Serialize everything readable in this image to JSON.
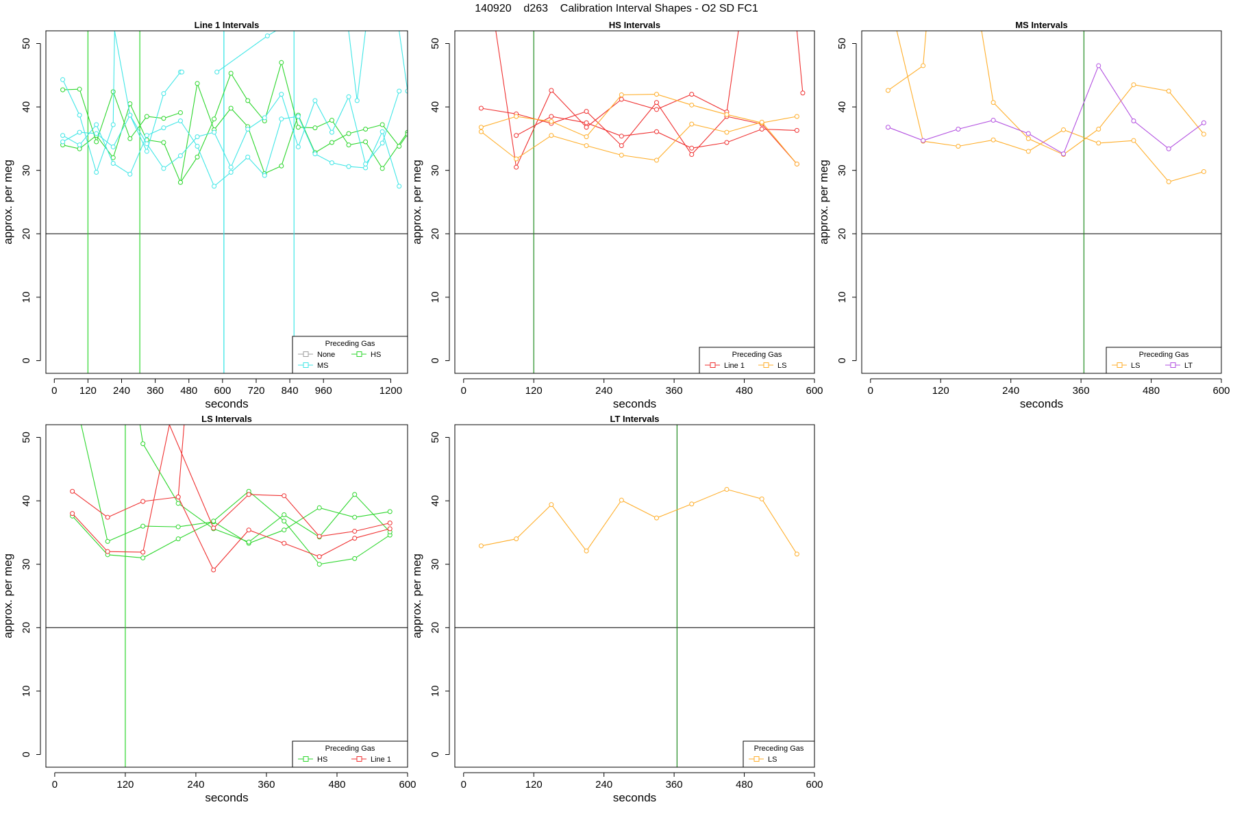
{
  "title": "140920    d263    Calibration Interval Shapes - O2 SD FC1",
  "y_label": "approx. per meg",
  "x_label": "seconds",
  "legend_title": "Preceding Gas",
  "colors": {
    "None": "#9e9e9e",
    "HS": "#2bd62b",
    "MS": "#3fe6e6",
    "Line 1": "#ef3030",
    "LS": "#ffae2a",
    "LT": "#b24fe0",
    "ref_line": "#000000",
    "vline": "#1e8a1e",
    "frame": "#000000"
  },
  "chart_data": [
    {
      "id": "line1",
      "type": "line",
      "title": "Line 1 Intervals",
      "xlabel": "seconds",
      "ylabel": "approx. per meg",
      "xlim": [
        -30,
        1260
      ],
      "ylim": [
        -2,
        52
      ],
      "xticks": [
        0,
        120,
        240,
        360,
        480,
        600,
        720,
        840,
        960,
        1200
      ],
      "yticks": [
        0,
        10,
        20,
        30,
        40,
        50
      ],
      "hline": 20,
      "vlines": [
        120,
        305
      ],
      "vlines_color": "HS",
      "extra_vlines": [
        {
          "x": 605,
          "color": "MS"
        },
        {
          "x": 605,
          "color": "MS"
        },
        {
          "x": 855,
          "color": "MS"
        }
      ],
      "legend": {
        "position": "bottom-right",
        "ncol": 2,
        "entries": [
          "None",
          "HS",
          "MS"
        ]
      },
      "series": [
        {
          "name": "HS",
          "color": "HS",
          "x": [
            30,
            90,
            150,
            210,
            270,
            330,
            390,
            450
          ],
          "y": [
            42.7,
            42.8,
            34.5,
            42.4,
            35.0,
            38.5,
            38.2,
            39.1
          ]
        },
        {
          "name": "HS",
          "color": "HS",
          "x": [
            30,
            90,
            150,
            210,
            270,
            330,
            390,
            450,
            510,
            570,
            630,
            690,
            750,
            810,
            870,
            930,
            990,
            1050,
            1110,
            1170,
            1260
          ],
          "y": [
            34.0,
            33.4,
            35.5,
            32.0,
            40.5,
            34.8,
            34.4,
            28.1,
            32.1,
            38.1,
            45.3,
            41.0,
            37.8,
            47.0,
            36.8,
            36.7,
            37.9,
            34.0,
            34.5,
            30.3,
            36.0
          ]
        },
        {
          "name": "HS",
          "color": "HS",
          "x": [
            450,
            510,
            570,
            630,
            690,
            750,
            810,
            870,
            930,
            990,
            1050,
            1110,
            1170,
            1230,
            1260
          ],
          "y": [
            28.1,
            43.7,
            36.4,
            39.8,
            36.9,
            29.5,
            30.7,
            38.7,
            32.8,
            34.4,
            35.8,
            36.5,
            37.2,
            33.8,
            35.7
          ]
        },
        {
          "name": "MS",
          "color": "MS",
          "x": [
            30,
            90,
            150,
            210,
            215,
            270,
            330,
            390,
            450,
            455
          ],
          "y": [
            44.3,
            38.7,
            29.7,
            37.2,
            52,
            38.7,
            33.0,
            42.1,
            45.5,
            45.5
          ]
        },
        {
          "name": "MS",
          "color": "MS",
          "x": [
            30,
            90,
            150,
            210,
            270,
            330,
            390,
            450,
            510,
            570,
            630,
            690,
            750,
            810,
            870,
            930,
            990,
            1050,
            1110,
            1170,
            1230
          ],
          "y": [
            35.5,
            34.0,
            37.2,
            31.1,
            29.4,
            35.5,
            36.7,
            37.8,
            33.8,
            27.5,
            29.7,
            32.1,
            29.2,
            38.1,
            38.5,
            32.6,
            31.2,
            30.6,
            30.4,
            36.1,
            27.5
          ]
        },
        {
          "name": "MS",
          "color": "MS",
          "x": [
            30,
            90,
            150,
            210,
            270,
            330,
            390,
            450,
            510,
            570,
            630,
            690,
            750,
            810,
            870,
            930,
            990,
            1050,
            1110,
            1170,
            1230
          ],
          "y": [
            34.5,
            36.0,
            35.8,
            33.7,
            38.7,
            34.2,
            30.3,
            32.3,
            35.3,
            36.0,
            30.5,
            36.5,
            38.3,
            42.0,
            33.7,
            41.0,
            36.0,
            41.6,
            31.0,
            34.3,
            42.5
          ]
        },
        {
          "name": "MS",
          "color": "MS",
          "x": [
            580,
            760,
            790,
            1050,
            1080,
            1110,
            1170,
            1230,
            1260
          ],
          "y": [
            45.5,
            51.2,
            52,
            52,
            41.0,
            52,
            52,
            52,
            42.5
          ]
        }
      ]
    },
    {
      "id": "hs",
      "type": "line",
      "title": "HS Intervals",
      "xlabel": "seconds",
      "ylabel": "approx. per meg",
      "xlim": [
        -15,
        600
      ],
      "ylim": [
        -2,
        52
      ],
      "xticks": [
        0,
        120,
        240,
        360,
        480,
        600
      ],
      "yticks": [
        0,
        10,
        20,
        30,
        40,
        50
      ],
      "hline": 20,
      "vlines": [
        120
      ],
      "vlines_color": "vline",
      "legend": {
        "position": "bottom-right",
        "ncol": 2,
        "entries": [
          "Line 1",
          "LS"
        ]
      },
      "series": [
        {
          "name": "Line 1",
          "color": "Line 1",
          "x": [
            30,
            55,
            90,
            150,
            210,
            270,
            330,
            390,
            450,
            470,
            510,
            570,
            580
          ],
          "y": [
            52,
            52,
            30.5,
            42.6,
            36.8,
            41.2,
            39.6,
            42.0,
            39.2,
            52,
            52,
            52,
            42.2
          ]
        },
        {
          "name": "Line 1",
          "color": "Line 1",
          "x": [
            30,
            90,
            150,
            210,
            270,
            330,
            390,
            450,
            510,
            570
          ],
          "y": [
            39.8,
            38.9,
            37.4,
            39.3,
            33.9,
            40.7,
            32.5,
            38.5,
            37.3,
            31.0
          ]
        },
        {
          "name": "Line 1",
          "color": "Line 1",
          "x": [
            90,
            150,
            210,
            270,
            330,
            390,
            450,
            510,
            570
          ],
          "y": [
            35.5,
            38.5,
            37.5,
            35.4,
            36.1,
            33.5,
            34.4,
            36.5,
            36.3
          ]
        },
        {
          "name": "LS",
          "color": "LS",
          "x": [
            30,
            90,
            150,
            210,
            270,
            330,
            390,
            450,
            510,
            570
          ],
          "y": [
            36.8,
            38.5,
            37.7,
            35.3,
            41.9,
            42.0,
            40.3,
            38.8,
            37.5,
            38.5
          ]
        },
        {
          "name": "LS",
          "color": "LS",
          "x": [
            30,
            90,
            150,
            210,
            270,
            330,
            390,
            450,
            510,
            570
          ],
          "y": [
            36.1,
            31.8,
            35.5,
            33.9,
            32.4,
            31.6,
            37.3,
            36.0,
            37.6,
            31.0
          ]
        }
      ]
    },
    {
      "id": "ms",
      "type": "line",
      "title": "MS Intervals",
      "xlabel": "seconds",
      "ylabel": "approx. per meg",
      "xlim": [
        -15,
        600
      ],
      "ylim": [
        -2,
        52
      ],
      "xticks": [
        0,
        120,
        240,
        360,
        480,
        600
      ],
      "yticks": [
        0,
        10,
        20,
        30,
        40,
        50
      ],
      "hline": 20,
      "vlines": [
        365
      ],
      "vlines_color": "vline",
      "legend": {
        "position": "bottom-right",
        "ncol": 2,
        "entries": [
          "LS",
          "LT"
        ]
      },
      "series": [
        {
          "name": "LS",
          "color": "LS",
          "x": [
            30,
            90,
            95
          ],
          "y": [
            42.6,
            46.5,
            52
          ]
        },
        {
          "name": "LS",
          "color": "LS",
          "x": [
            45,
            90,
            150,
            210,
            270,
            330,
            390,
            450,
            510,
            570
          ],
          "y": [
            52,
            34.6,
            33.8,
            34.8,
            33.0,
            36.4,
            34.3,
            34.7,
            28.2,
            29.8
          ]
        },
        {
          "name": "LS",
          "color": "LS",
          "x": [
            190,
            210,
            270,
            330,
            390,
            450,
            510,
            570
          ],
          "y": [
            52,
            40.7,
            35.0,
            32.5,
            36.5,
            43.5,
            42.5,
            35.7
          ]
        },
        {
          "name": "LT",
          "color": "LT",
          "x": [
            30,
            90,
            150,
            210,
            270,
            330,
            390,
            450,
            510,
            570
          ],
          "y": [
            36.8,
            34.7,
            36.5,
            37.9,
            35.8,
            32.6,
            46.5,
            37.8,
            33.4,
            37.5
          ]
        }
      ]
    },
    {
      "id": "ls",
      "type": "line",
      "title": "LS Intervals",
      "xlabel": "seconds",
      "ylabel": "approx. per meg",
      "xlim": [
        -15,
        600
      ],
      "ylim": [
        -2,
        52
      ],
      "xticks": [
        0,
        120,
        240,
        360,
        480,
        600
      ],
      "yticks": [
        0,
        10,
        20,
        30,
        40,
        50
      ],
      "hline": 20,
      "vlines": [
        120
      ],
      "vlines_color": "HS",
      "legend": {
        "position": "bottom-right",
        "ncol": 2,
        "entries": [
          "HS",
          "Line 1"
        ]
      },
      "series": [
        {
          "name": "HS",
          "color": "HS",
          "x": [
            45,
            90,
            150,
            210,
            270,
            330,
            390,
            450,
            510,
            570
          ],
          "y": [
            52,
            33.6,
            36.0,
            35.9,
            36.7,
            33.3,
            35.4,
            38.9,
            37.4,
            38.3
          ]
        },
        {
          "name": "HS",
          "color": "HS",
          "x": [
            30,
            90,
            150,
            210,
            270,
            330,
            390,
            450,
            510,
            570
          ],
          "y": [
            37.6,
            31.5,
            31.0,
            34.0,
            36.8,
            41.5,
            36.8,
            30.0,
            30.9,
            34.6
          ]
        },
        {
          "name": "HS",
          "color": "HS",
          "x": [
            145,
            150,
            210,
            270,
            330,
            390,
            450,
            510,
            570
          ],
          "y": [
            52,
            49.0,
            39.6,
            35.6,
            33.5,
            37.8,
            34.3,
            41.0,
            35.1
          ]
        },
        {
          "name": "Line 1",
          "color": "Line 1",
          "x": [
            30,
            90,
            150,
            210,
            270,
            330,
            390,
            450,
            510,
            570
          ],
          "y": [
            41.5,
            37.4,
            39.9,
            40.6,
            29.1,
            35.4,
            33.3,
            31.2,
            34.1,
            35.6
          ]
        },
        {
          "name": "Line 1",
          "color": "Line 1",
          "x": [
            30,
            90,
            150,
            195,
            270,
            330,
            390,
            450,
            510,
            570
          ],
          "y": [
            38.0,
            32.0,
            31.9,
            52,
            35.7,
            41.0,
            40.8,
            34.4,
            35.2,
            36.5
          ]
        },
        {
          "name": "Line 1",
          "color": "Line 1",
          "x": [
            210,
            220
          ],
          "y": [
            40.6,
            52
          ]
        }
      ]
    },
    {
      "id": "lt",
      "type": "line",
      "title": "LT Intervals",
      "xlabel": "seconds",
      "ylabel": "approx. per meg",
      "xlim": [
        -15,
        600
      ],
      "ylim": [
        -2,
        52
      ],
      "xticks": [
        0,
        120,
        240,
        360,
        480,
        600
      ],
      "yticks": [
        0,
        10,
        20,
        30,
        40,
        50
      ],
      "hline": 20,
      "vlines": [
        365
      ],
      "vlines_color": "vline",
      "legend": {
        "position": "bottom-right",
        "ncol": 1,
        "entries": [
          "LS"
        ]
      },
      "series": [
        {
          "name": "LS",
          "color": "LS",
          "x": [
            30,
            90,
            150,
            210,
            270,
            330,
            390,
            450,
            510,
            570
          ],
          "y": [
            32.9,
            34.0,
            39.4,
            32.1,
            40.1,
            37.3,
            39.5,
            41.8,
            40.3,
            31.6
          ]
        }
      ]
    }
  ]
}
